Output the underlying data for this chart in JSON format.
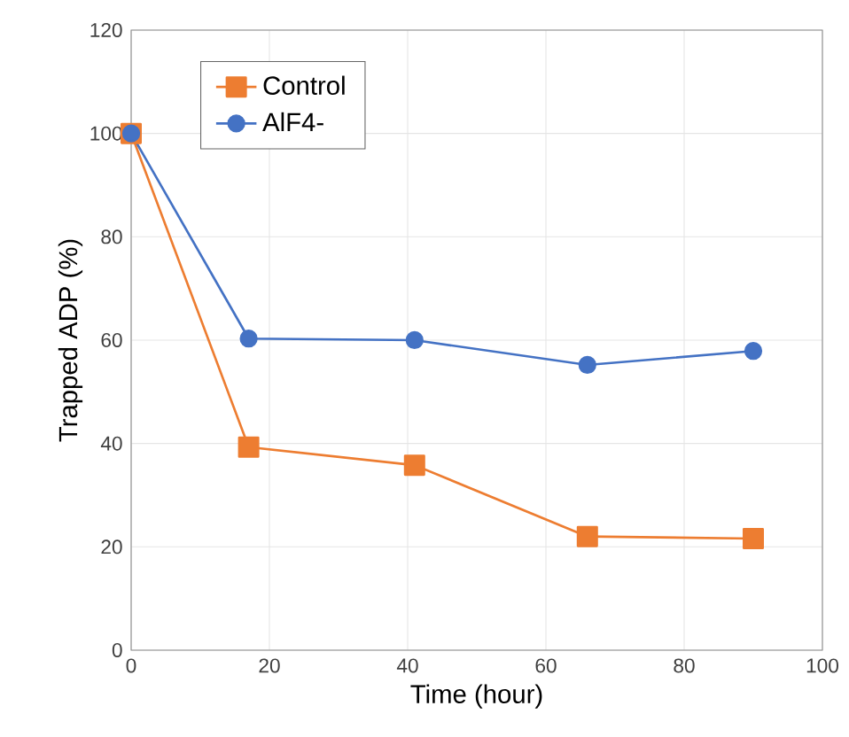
{
  "chart_data": {
    "type": "line",
    "xlabel": "Time (hour)",
    "ylabel": "Trapped ADP (%)",
    "xlim": [
      0,
      100
    ],
    "xticks": [
      0,
      20,
      40,
      60,
      80,
      100
    ],
    "ylim": [
      0,
      120
    ],
    "yticks": [
      0,
      20,
      40,
      60,
      80,
      100,
      120
    ],
    "grid": true,
    "legend": "top left",
    "line_style": "solid",
    "series": [
      {
        "name": "Control",
        "color": "#ed7d31",
        "marker": "square",
        "x": [
          0,
          17,
          41,
          66,
          90
        ],
        "values": [
          100,
          39.3,
          35.8,
          22.0,
          21.6
        ]
      },
      {
        "name": "AlF4-",
        "color": "#4472c4",
        "marker": "circle",
        "x": [
          0,
          17,
          41,
          66,
          90
        ],
        "values": [
          100,
          60.3,
          60.0,
          55.2,
          57.9
        ]
      }
    ]
  }
}
